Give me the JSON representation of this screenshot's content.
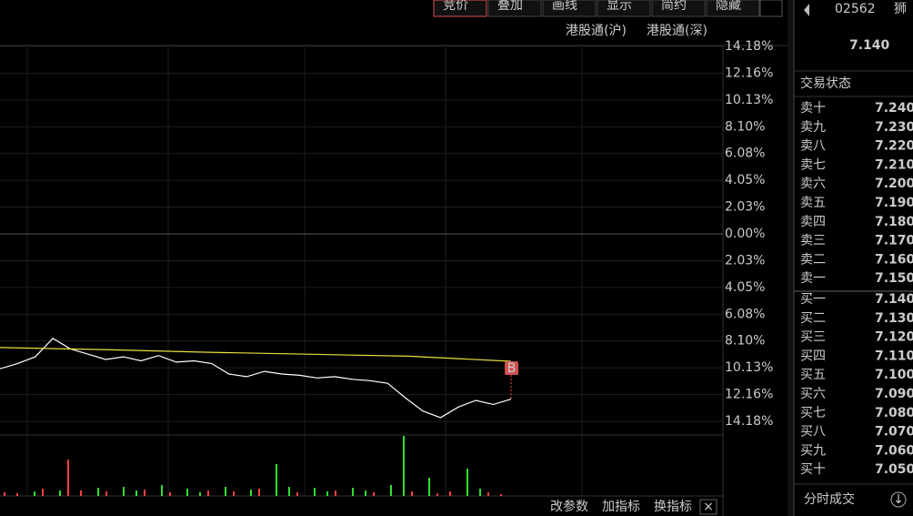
{
  "toolbar": [
    "竞价",
    "叠加",
    "画线",
    "显示",
    "简约",
    "隐藏"
  ],
  "connect": [
    "港股通(沪)",
    "港股通(深)"
  ],
  "chart_data": {
    "type": "line",
    "yticks": [
      {
        "value": 14.18,
        "label": "14.18%"
      },
      {
        "value": 12.16,
        "label": "12.16%"
      },
      {
        "value": 10.13,
        "label": "10.13%"
      },
      {
        "value": 8.1,
        "label": "8.10%"
      },
      {
        "value": 6.08,
        "label": "6.08%"
      },
      {
        "value": 4.05,
        "label": "4.05%"
      },
      {
        "value": 2.03,
        "label": "2.03%"
      },
      {
        "value": 0,
        "label": "0.00%"
      },
      {
        "value": -2.03,
        "label": "2.03%"
      },
      {
        "value": -4.05,
        "label": "4.05%"
      },
      {
        "value": -6.08,
        "label": "6.08%"
      },
      {
        "value": -8.1,
        "label": "8.10%"
      },
      {
        "value": -10.13,
        "label": "10.13%"
      },
      {
        "value": -12.16,
        "label": "12.16%"
      },
      {
        "value": -14.18,
        "label": "14.18%"
      }
    ],
    "ylim": [
      -14.18,
      14.18
    ],
    "series": [
      {
        "color": "#ffffff",
        "values": [
          -10.2,
          -9.8,
          -9.3,
          -7.9,
          -8.7,
          -9.1,
          -9.5,
          -9.3,
          -9.6,
          -9.2,
          -9.7,
          -9.6,
          -9.8,
          -10.6,
          -10.8,
          -10.4,
          -10.6,
          -10.7,
          -10.9,
          -10.8,
          -11.0,
          -11.1,
          -11.3,
          -12.4,
          -13.4,
          -13.9,
          -13.1,
          -12.6,
          -12.9,
          -12.5
        ]
      },
      {
        "color": "#e8e040",
        "values": [
          -8.6,
          -8.75,
          -8.95,
          -9.1,
          -9.25,
          -9.64
        ]
      }
    ],
    "marker": "B",
    "volume": [
      {
        "color": "#ff4040",
        "values": [
          4,
          3,
          null,
          8,
          null,
          40,
          6,
          null,
          5,
          null,
          null,
          7,
          null,
          4,
          null,
          null,
          6,
          null,
          5,
          null,
          8,
          null,
          null,
          4,
          null,
          null,
          6,
          null,
          null,
          4,
          null,
          null,
          5,
          null,
          3,
          5,
          null,
          null,
          4,
          2
        ]
      },
      {
        "color": "#30e030",
        "values": [
          null,
          null,
          5,
          null,
          6,
          null,
          null,
          9,
          null,
          10,
          6,
          null,
          12,
          null,
          8,
          4,
          null,
          10,
          null,
          7,
          null,
          35,
          10,
          null,
          9,
          5,
          null,
          9,
          6,
          null,
          12,
          66,
          null,
          20,
          null,
          null,
          30,
          8,
          null,
          null
        ]
      }
    ]
  },
  "bottom": [
    "改参数",
    "加指标",
    "换指标"
  ],
  "quote": {
    "code": "02562",
    "name": "狮",
    "price": "7.140",
    "status": "交易状态",
    "trades": "分时成交",
    "asks": [
      [
        "卖十",
        "7.240"
      ],
      [
        "卖九",
        "7.230"
      ],
      [
        "卖八",
        "7.220"
      ],
      [
        "卖七",
        "7.210"
      ],
      [
        "卖六",
        "7.200"
      ],
      [
        "卖五",
        "7.190"
      ],
      [
        "卖四",
        "7.180"
      ],
      [
        "卖三",
        "7.170"
      ],
      [
        "卖二",
        "7.160"
      ],
      [
        "卖一",
        "7.150"
      ]
    ],
    "bids": [
      [
        "买一",
        "7.140"
      ],
      [
        "买二",
        "7.130"
      ],
      [
        "买三",
        "7.120"
      ],
      [
        "买四",
        "7.110"
      ],
      [
        "买五",
        "7.100"
      ],
      [
        "买六",
        "7.090"
      ],
      [
        "买七",
        "7.080"
      ],
      [
        "买八",
        "7.070"
      ],
      [
        "买九",
        "7.060"
      ],
      [
        "买十",
        "7.050"
      ]
    ]
  }
}
